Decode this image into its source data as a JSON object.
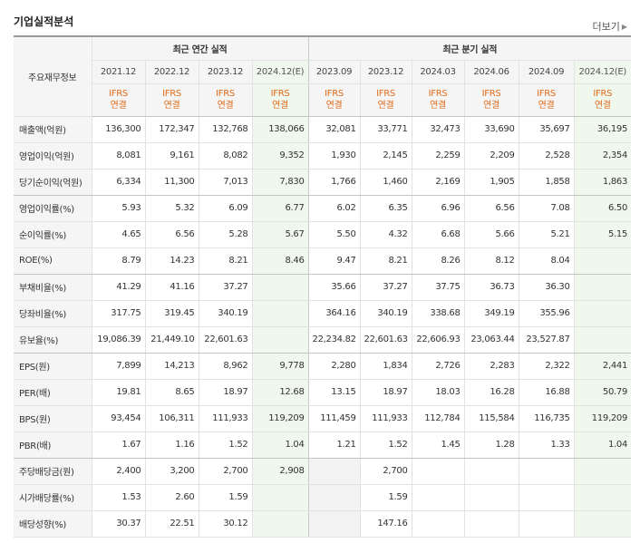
{
  "header": {
    "title": "기업실적분석",
    "more_label": "더보기"
  },
  "table": {
    "corner_label": "주요재무정보",
    "annual_group": "최근 연간 실적",
    "quarterly_group": "최근 분기 실적",
    "periods": [
      {
        "label": "2021.12",
        "acct": [
          "IFRS",
          "연결"
        ],
        "estimate": false
      },
      {
        "label": "2022.12",
        "acct": [
          "IFRS",
          "연결"
        ],
        "estimate": false
      },
      {
        "label": "2023.12",
        "acct": [
          "IFRS",
          "연결"
        ],
        "estimate": false
      },
      {
        "label": "2024.12(E)",
        "acct": [
          "IFRS",
          "연결"
        ],
        "estimate": true
      },
      {
        "label": "2023.09",
        "acct": [
          "IFRS",
          "연결"
        ],
        "estimate": false
      },
      {
        "label": "2023.12",
        "acct": [
          "IFRS",
          "연결"
        ],
        "estimate": false
      },
      {
        "label": "2024.03",
        "acct": [
          "IFRS",
          "연결"
        ],
        "estimate": false
      },
      {
        "label": "2024.06",
        "acct": [
          "IFRS",
          "연결"
        ],
        "estimate": false
      },
      {
        "label": "2024.09",
        "acct": [
          "IFRS",
          "연결"
        ],
        "estimate": false
      },
      {
        "label": "2024.12(E)",
        "acct": [
          "IFRS",
          "연결"
        ],
        "estimate": true
      }
    ],
    "rows": [
      {
        "label": "매출액(억원)",
        "values": [
          "136,300",
          "172,347",
          "132,768",
          "138,066",
          "32,081",
          "33,771",
          "32,473",
          "33,690",
          "35,697",
          "36,195"
        ]
      },
      {
        "label": "영업이익(억원)",
        "values": [
          "8,081",
          "9,161",
          "8,082",
          "9,352",
          "1,930",
          "2,145",
          "2,259",
          "2,209",
          "2,528",
          "2,354"
        ]
      },
      {
        "label": "당기순이익(억원)",
        "values": [
          "6,334",
          "11,300",
          "7,013",
          "7,830",
          "1,766",
          "1,460",
          "2,169",
          "1,905",
          "1,858",
          "1,863"
        ],
        "group_end": true
      },
      {
        "label": "영업이익률(%)",
        "values": [
          "5.93",
          "5.32",
          "6.09",
          "6.77",
          "6.02",
          "6.35",
          "6.96",
          "6.56",
          "7.08",
          "6.50"
        ]
      },
      {
        "label": "순이익률(%)",
        "values": [
          "4.65",
          "6.56",
          "5.28",
          "5.67",
          "5.50",
          "4.32",
          "6.68",
          "5.66",
          "5.21",
          "5.15"
        ]
      },
      {
        "label": "ROE(%)",
        "values": [
          "8.79",
          "14.23",
          "8.21",
          "8.46",
          "9.47",
          "8.21",
          "8.26",
          "8.12",
          "8.04",
          ""
        ],
        "group_end": true
      },
      {
        "label": "부채비율(%)",
        "values": [
          "41.29",
          "41.16",
          "37.27",
          "",
          "35.66",
          "37.27",
          "37.75",
          "36.73",
          "36.30",
          ""
        ]
      },
      {
        "label": "당좌비율(%)",
        "values": [
          "317.75",
          "319.45",
          "340.19",
          "",
          "364.16",
          "340.19",
          "338.68",
          "349.19",
          "355.96",
          ""
        ]
      },
      {
        "label": "유보율(%)",
        "values": [
          "19,086.39",
          "21,449.10",
          "22,601.63",
          "",
          "22,234.82",
          "22,601.63",
          "22,606.93",
          "23,063.44",
          "23,527.87",
          ""
        ],
        "group_end": true
      },
      {
        "label": "EPS(원)",
        "values": [
          "7,899",
          "14,213",
          "8,962",
          "9,778",
          "2,280",
          "1,834",
          "2,726",
          "2,283",
          "2,322",
          "2,441"
        ]
      },
      {
        "label": "PER(배)",
        "values": [
          "19.81",
          "8.65",
          "18.97",
          "12.68",
          "13.15",
          "18.97",
          "18.03",
          "16.28",
          "16.88",
          "50.79"
        ]
      },
      {
        "label": "BPS(원)",
        "values": [
          "93,454",
          "106,311",
          "111,933",
          "119,209",
          "111,459",
          "111,933",
          "112,784",
          "115,584",
          "116,735",
          "119,209"
        ]
      },
      {
        "label": "PBR(배)",
        "values": [
          "1.67",
          "1.16",
          "1.52",
          "1.04",
          "1.21",
          "1.52",
          "1.45",
          "1.28",
          "1.33",
          "1.04"
        ],
        "group_end": true
      },
      {
        "label": "주당배당금(원)",
        "values": [
          "2,400",
          "3,200",
          "2,700",
          "2,908",
          "",
          "2,700",
          "",
          "",
          "",
          ""
        ]
      },
      {
        "label": "시가배당률(%)",
        "values": [
          "1.53",
          "2.60",
          "1.59",
          "",
          "",
          "1.59",
          "",
          "",
          "",
          ""
        ]
      },
      {
        "label": "배당성향(%)",
        "values": [
          "30.37",
          "22.51",
          "30.12",
          "",
          "",
          "147.16",
          "",
          "",
          "",
          ""
        ]
      }
    ]
  }
}
